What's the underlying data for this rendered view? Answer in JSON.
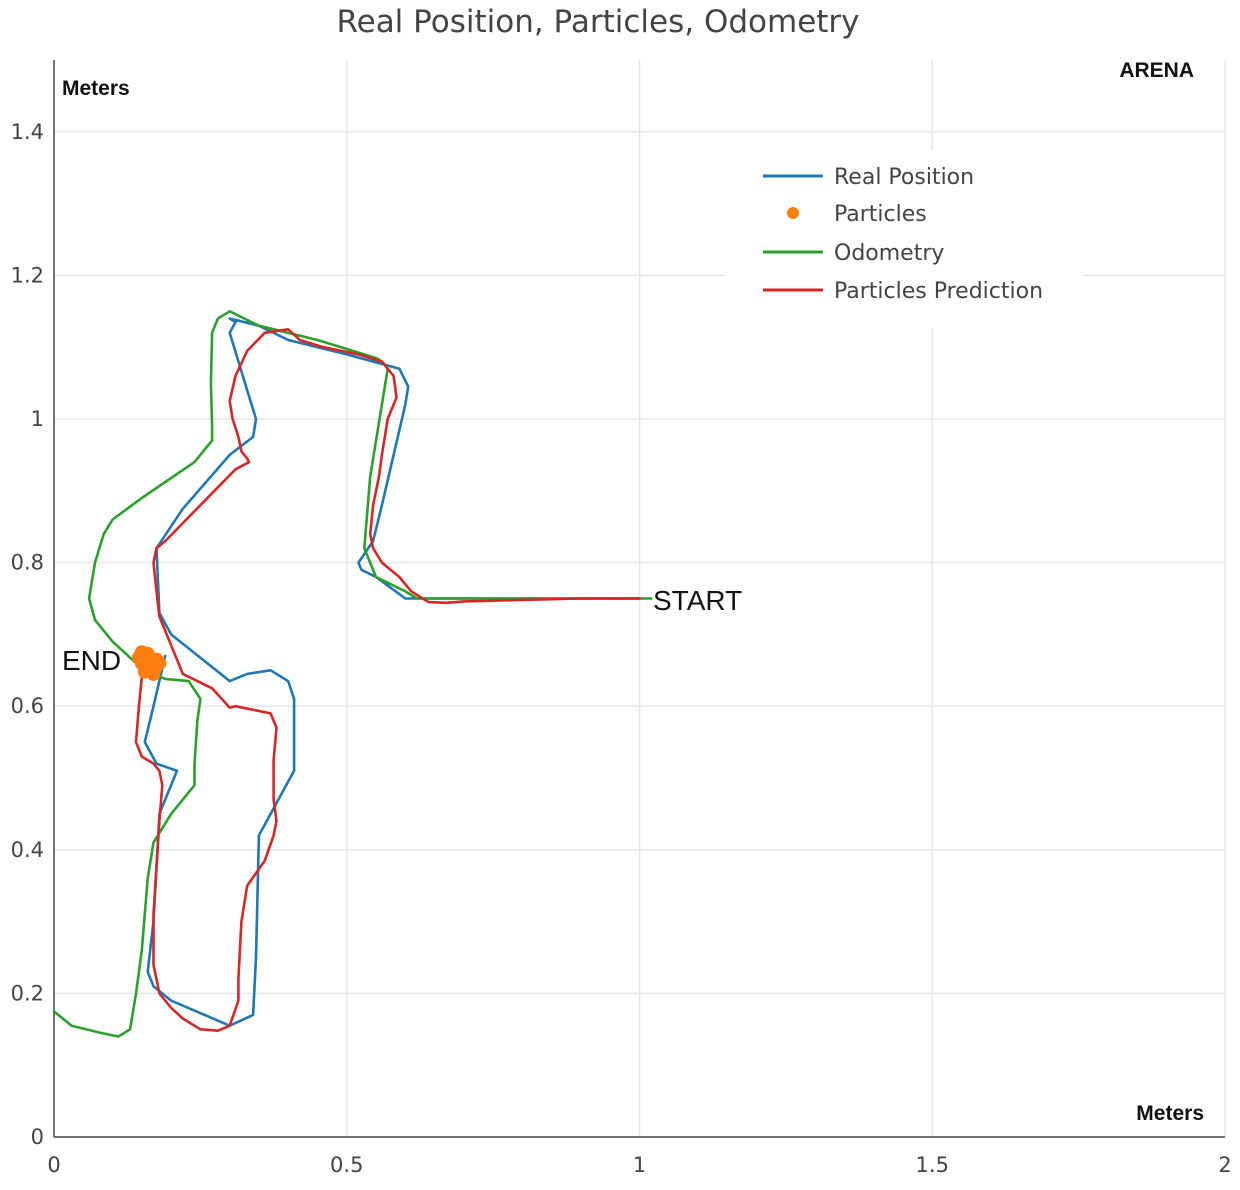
{
  "chart_data": {
    "type": "line",
    "title": "Real Position, Particles, Odometry",
    "xlabel": "Meters",
    "ylabel": "Meters",
    "xlim": [
      0,
      2
    ],
    "ylim": [
      0,
      1.5
    ],
    "xticks": [
      0,
      0.5,
      1,
      1.5,
      2
    ],
    "yticks": [
      0,
      0.2,
      0.4,
      0.6,
      0.8,
      1,
      1.2,
      1.4
    ],
    "xtick_labels": [
      "0",
      "0.5",
      "1",
      "1.5",
      "2"
    ],
    "ytick_labels": [
      "0",
      "0.2",
      "0.4",
      "0.6",
      "0.8",
      "1",
      "1.2",
      "1.4"
    ],
    "grid": true,
    "corner_label": "ARENA",
    "legend_position": "top-right",
    "annotations": [
      {
        "text": "START",
        "x": 1.03,
        "y": 0.75
      },
      {
        "text": "END",
        "x": 0.015,
        "y": 0.665
      }
    ],
    "series": [
      {
        "name": "Real Position",
        "kind": "line",
        "color": "#1f77b4",
        "x": [
          0.19,
          0.17,
          0.155,
          0.175,
          0.21,
          0.18,
          0.17,
          0.16,
          0.17,
          0.2,
          0.3,
          0.34,
          0.345,
          0.35,
          0.41,
          0.41,
          0.4,
          0.37,
          0.33,
          0.3,
          0.2,
          0.18,
          0.175,
          0.22,
          0.3,
          0.34,
          0.345,
          0.33,
          0.3,
          0.31,
          0.3,
          0.35,
          0.4,
          0.5,
          0.59,
          0.605,
          0.6,
          0.58,
          0.56,
          0.545,
          0.52,
          0.525,
          0.55,
          0.6,
          0.7,
          0.85,
          1.0
        ],
        "y": [
          0.67,
          0.6,
          0.55,
          0.52,
          0.51,
          0.45,
          0.3,
          0.23,
          0.21,
          0.19,
          0.155,
          0.17,
          0.25,
          0.42,
          0.51,
          0.61,
          0.635,
          0.65,
          0.645,
          0.635,
          0.7,
          0.73,
          0.82,
          0.875,
          0.95,
          0.975,
          1.0,
          1.04,
          1.12,
          1.135,
          1.14,
          1.13,
          1.11,
          1.09,
          1.07,
          1.045,
          1.02,
          0.95,
          0.88,
          0.83,
          0.8,
          0.79,
          0.78,
          0.75,
          0.75,
          0.75,
          0.75
        ]
      },
      {
        "name": "Particles",
        "kind": "scatter",
        "color": "#ff7f0e",
        "x": [
          0.15,
          0.16,
          0.17,
          0.175,
          0.155,
          0.165,
          0.145,
          0.18,
          0.16,
          0.17,
          0.15,
          0.165,
          0.172,
          0.158
        ],
        "y": [
          0.66,
          0.67,
          0.655,
          0.665,
          0.648,
          0.658,
          0.668,
          0.66,
          0.673,
          0.645,
          0.675,
          0.663,
          0.652,
          0.661
        ]
      },
      {
        "name": "Odometry",
        "kind": "line",
        "color": "#2ca02c",
        "x": [
          1.02,
          0.9,
          0.75,
          0.62,
          0.6,
          0.55,
          0.53,
          0.54,
          0.56,
          0.57,
          0.56,
          0.55,
          0.45,
          0.35,
          0.3,
          0.28,
          0.27,
          0.268,
          0.27,
          0.27,
          0.24,
          0.15,
          0.1,
          0.085,
          0.07,
          0.06,
          0.07,
          0.1,
          0.14,
          0.17,
          0.19,
          0.23,
          0.25,
          0.245,
          0.24,
          0.24,
          0.2,
          0.17,
          0.16,
          0.15,
          0.14,
          0.13,
          0.11,
          0.08,
          0.03,
          0.0
        ],
        "y": [
          0.75,
          0.75,
          0.75,
          0.75,
          0.76,
          0.78,
          0.82,
          0.92,
          1.02,
          1.07,
          1.08,
          1.085,
          1.11,
          1.13,
          1.15,
          1.14,
          1.12,
          1.05,
          0.99,
          0.97,
          0.94,
          0.89,
          0.86,
          0.84,
          0.8,
          0.75,
          0.72,
          0.69,
          0.66,
          0.645,
          0.638,
          0.635,
          0.61,
          0.58,
          0.52,
          0.49,
          0.45,
          0.41,
          0.36,
          0.26,
          0.2,
          0.15,
          0.14,
          0.145,
          0.155,
          0.175
        ]
      },
      {
        "name": "Particles Prediction",
        "kind": "line",
        "color": "#d62728",
        "x": [
          1.0,
          0.9,
          0.8,
          0.7,
          0.67,
          0.64,
          0.61,
          0.59,
          0.56,
          0.545,
          0.54,
          0.545,
          0.555,
          0.56,
          0.57,
          0.585,
          0.58,
          0.56,
          0.52,
          0.46,
          0.42,
          0.4,
          0.36,
          0.33,
          0.31,
          0.3,
          0.305,
          0.315,
          0.32,
          0.33,
          0.333,
          0.31,
          0.25,
          0.22,
          0.19,
          0.175,
          0.17,
          0.175,
          0.18,
          0.22,
          0.27,
          0.3,
          0.31,
          0.37,
          0.38,
          0.375,
          0.375,
          0.38,
          0.375,
          0.36,
          0.33,
          0.32,
          0.315,
          0.315,
          0.3,
          0.28,
          0.25,
          0.22,
          0.2,
          0.18,
          0.17,
          0.17,
          0.18,
          0.185,
          0.18,
          0.17,
          0.15,
          0.14,
          0.145,
          0.15,
          0.16
        ],
        "y": [
          0.75,
          0.75,
          0.748,
          0.746,
          0.744,
          0.745,
          0.76,
          0.78,
          0.8,
          0.82,
          0.84,
          0.88,
          0.92,
          0.95,
          1.0,
          1.03,
          1.06,
          1.08,
          1.09,
          1.1,
          1.11,
          1.125,
          1.12,
          1.095,
          1.06,
          1.025,
          1.0,
          0.975,
          0.955,
          0.945,
          0.94,
          0.93,
          0.88,
          0.855,
          0.83,
          0.82,
          0.8,
          0.76,
          0.725,
          0.645,
          0.625,
          0.598,
          0.6,
          0.59,
          0.57,
          0.525,
          0.47,
          0.44,
          0.42,
          0.385,
          0.35,
          0.3,
          0.22,
          0.19,
          0.155,
          0.148,
          0.15,
          0.165,
          0.18,
          0.2,
          0.24,
          0.31,
          0.44,
          0.49,
          0.51,
          0.52,
          0.53,
          0.55,
          0.6,
          0.64,
          0.667
        ]
      }
    ]
  }
}
